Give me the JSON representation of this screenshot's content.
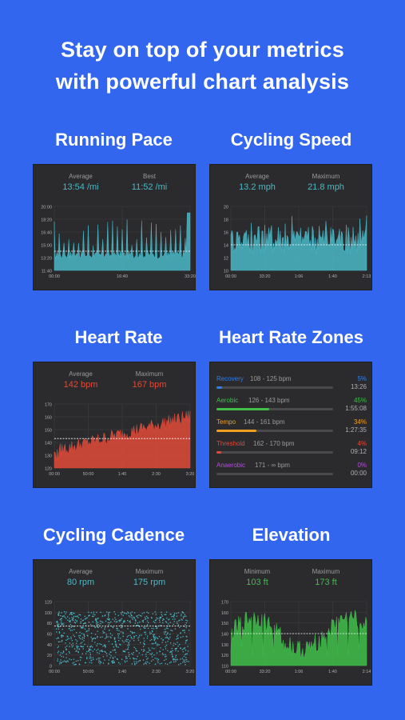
{
  "headline": {
    "line1": "Stay on top of your metrics",
    "line2": "with powerful chart analysis"
  },
  "colors": {
    "background": "#3366ef",
    "card": "#2b2b2d",
    "cyan": "#4ab8c8",
    "red": "#e04a3a",
    "green": "#3fbf4a"
  },
  "panels": {
    "running_pace": {
      "title": "Running Pace",
      "stat1_label": "Average",
      "stat1_value": "13:54 /mi",
      "stat2_label": "Best",
      "stat2_value": "11:52 /mi"
    },
    "cycling_speed": {
      "title": "Cycling Speed",
      "stat1_label": "Average",
      "stat1_value": "13.2 mph",
      "stat2_label": "Maximum",
      "stat2_value": "21.8 mph"
    },
    "heart_rate": {
      "title": "Heart Rate",
      "stat1_label": "Average",
      "stat1_value": "142 bpm",
      "stat2_label": "Maximum",
      "stat2_value": "167 bpm"
    },
    "heart_rate_zones": {
      "title": "Heart Rate Zones",
      "zones": [
        {
          "name": "Recovery",
          "range": "108 - 125 bpm",
          "pct": "5%",
          "time": "13:26",
          "fraction": 0.05,
          "color": "#2f7fe8"
        },
        {
          "name": "Aerobic",
          "range": "126 - 143 bpm",
          "pct": "45%",
          "time": "1:55:08",
          "fraction": 0.45,
          "color": "#3fbf4a"
        },
        {
          "name": "Tempo",
          "range": "144 - 161 bpm",
          "pct": "34%",
          "time": "1:27:35",
          "fraction": 0.34,
          "color": "#f0a020"
        },
        {
          "name": "Threshold",
          "range": "162 - 170 bpm",
          "pct": "4%",
          "time": "09:12",
          "fraction": 0.04,
          "color": "#e04a3a"
        },
        {
          "name": "Anaerobic",
          "range": "171 - ∞ bpm",
          "pct": "0%",
          "time": "00:00",
          "fraction": 0.0,
          "color": "#b050d8"
        }
      ]
    },
    "cycling_cadence": {
      "title": "Cycling Cadence",
      "stat1_label": "Average",
      "stat1_value": "80 rpm",
      "stat2_label": "Maximum",
      "stat2_value": "175 rpm"
    },
    "elevation": {
      "title": "Elevation",
      "stat1_label": "Minimum",
      "stat1_value": "103 ft",
      "stat2_label": "Maximum",
      "stat2_value": "173 ft"
    }
  },
  "chart_data": [
    {
      "id": "pace",
      "type": "area",
      "color": "#4ab8c8",
      "yticks": [
        "20:00",
        "18:20",
        "16:40",
        "15:00",
        "13:20",
        "11:40"
      ],
      "xticks": [
        "00:00",
        "16:40",
        "33:20"
      ],
      "avg": 0.3,
      "profile": "spiky"
    },
    {
      "id": "speed",
      "type": "area",
      "color": "#4ab8c8",
      "yticks": [
        "20",
        "18",
        "16",
        "14",
        "12",
        "10"
      ],
      "xticks": [
        "00:00",
        "33:20",
        "1:06",
        "1:40",
        "2:13"
      ],
      "avg": 0.4,
      "profile": "noisy"
    },
    {
      "id": "hr",
      "type": "area",
      "color": "#e04a3a",
      "yticks": [
        "170",
        "160",
        "150",
        "140",
        "130",
        "120"
      ],
      "xticks": [
        "00:00",
        "50:00",
        "1:40",
        "2:30",
        "3:20"
      ],
      "avg": 0.46,
      "profile": "rising"
    },
    {
      "id": "cadence",
      "type": "scatter",
      "color": "#4ab8c8",
      "yticks": [
        "120",
        "100",
        "80",
        "60",
        "40",
        "20",
        "0"
      ],
      "xticks": [
        "00:00",
        "50:00",
        "1:40",
        "2:30",
        "3:20"
      ],
      "avg": 0.62,
      "profile": "band"
    },
    {
      "id": "elev",
      "type": "area",
      "color": "#3fbf4a",
      "yticks": [
        "170",
        "160",
        "150",
        "140",
        "130",
        "120",
        "110"
      ],
      "xticks": [
        "00:00",
        "33:20",
        "1:06",
        "1:40",
        "2:14"
      ],
      "avg": 0.5,
      "profile": "terrain"
    }
  ]
}
